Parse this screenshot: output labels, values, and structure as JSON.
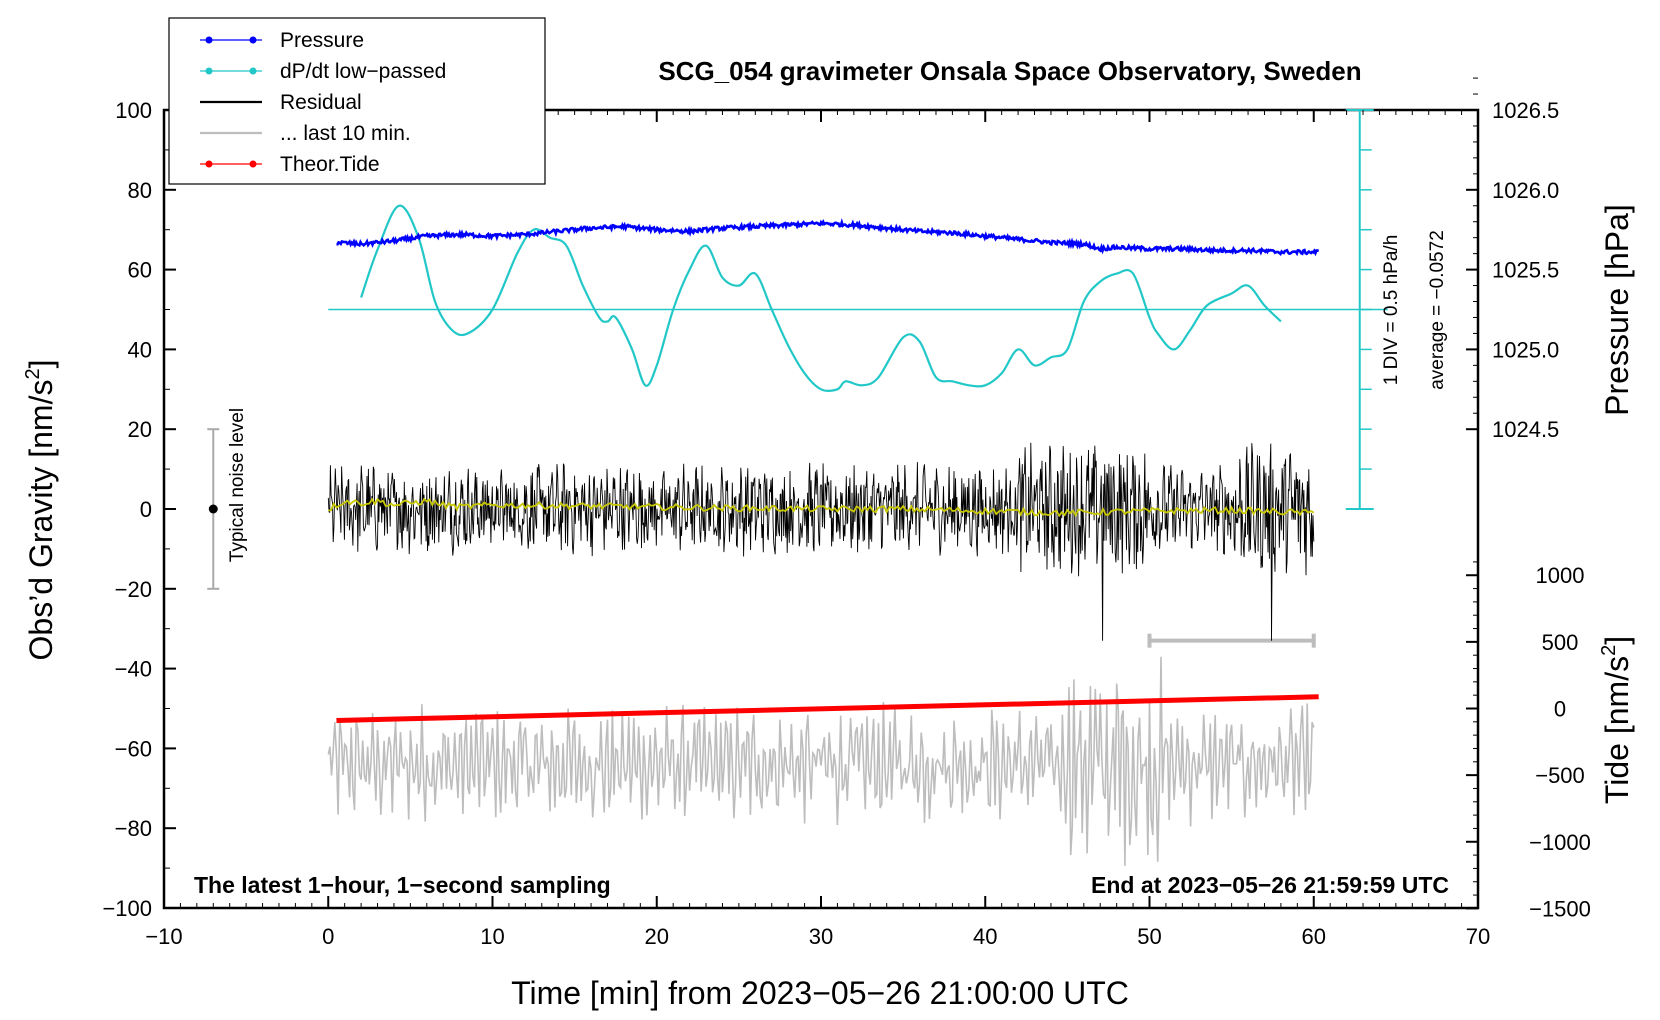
{
  "chart_data": {
    "type": "line",
    "title": "SCG_054 gravimeter Onsala Space Observatory, Sweden",
    "xlabel": "Time [min] from 2023−05−26 21:00:00 UTC",
    "ylabel_left": "Obs’d Gravity [nm/s",
    "ylabel_left_sup": "2",
    "ylabel_left_end": "]",
    "ylabel_right_pressure": "Pressure [hPa]",
    "ylabel_right_tide": "Tide [nm/s",
    "ylabel_right_tide_sup": "2",
    "ylabel_right_tide_end": "]",
    "xlim": [
      -10,
      70
    ],
    "ylim": [
      -100,
      100
    ],
    "x_ticks": [
      -10,
      0,
      10,
      20,
      30,
      40,
      50,
      60,
      70
    ],
    "x_tick_labels": [
      "−10",
      "0",
      "10",
      "20",
      "30",
      "40",
      "50",
      "60",
      "70"
    ],
    "y_ticks": [
      -100,
      -80,
      -60,
      -40,
      -20,
      0,
      20,
      40,
      60,
      80,
      100
    ],
    "y_tick_labels": [
      "−100",
      "−80",
      "−60",
      "−40",
      "−20",
      "0",
      "20",
      "40",
      "60",
      "80",
      "100"
    ],
    "pressure_axis": {
      "ticks": [
        1024.5,
        1025.0,
        1025.5,
        1026.0,
        1026.5
      ],
      "tick_labels": [
        "1024.5",
        "1025.0",
        "1025.5",
        "1026.0",
        "1026.5"
      ],
      "gravity_at_1024_5": 20,
      "units_per_hpa": 40
    },
    "tide_axis": {
      "ticks": [
        -1500,
        -1000,
        -500,
        0,
        500,
        1000
      ],
      "tick_labels": [
        "−1500",
        "−1000",
        "−500",
        "0",
        "500",
        "1000"
      ],
      "gravity_at_0": -50,
      "units_per_500": 16.7
    },
    "dpdt_scale": {
      "label_div": "1 DIV = 0.5 hPa/h",
      "label_avg": "average = −0.0572",
      "average": -0.0572,
      "baseline_gravity": 50
    },
    "legend": [
      {
        "name": "Pressure",
        "color": "#0000ff",
        "marker": true
      },
      {
        "name": "dP/dt low−passed",
        "color": "#22c7c7",
        "marker": true
      },
      {
        "name": "Residual",
        "color": "#000000",
        "marker": false
      },
      {
        "name": "... last 10 min.",
        "color": "#bdbdbd",
        "marker": false
      },
      {
        "name": "Theor.Tide",
        "color": "#ff0000",
        "marker": true
      }
    ],
    "series": [
      {
        "name": "Pressure",
        "color": "#0000ff",
        "unit": "hPa",
        "x": [
          0.5,
          2,
          4,
          6,
          8,
          10,
          12,
          14,
          16,
          18,
          20,
          22,
          24,
          26,
          28,
          30,
          32,
          34,
          36,
          38,
          40,
          42,
          44,
          46,
          47,
          48,
          50,
          52,
          54,
          56,
          58,
          60.3
        ],
        "values": [
          1025.67,
          1025.66,
          1025.68,
          1025.71,
          1025.72,
          1025.71,
          1025.72,
          1025.74,
          1025.76,
          1025.77,
          1025.75,
          1025.74,
          1025.76,
          1025.77,
          1025.78,
          1025.79,
          1025.78,
          1025.76,
          1025.74,
          1025.73,
          1025.71,
          1025.69,
          1025.67,
          1025.66,
          1025.63,
          1025.64,
          1025.63,
          1025.63,
          1025.62,
          1025.62,
          1025.61,
          1025.61
        ]
      },
      {
        "name": "dP/dt low−passed",
        "color": "#22c7c7",
        "unit": "gravity-plot units",
        "x": [
          2,
          3,
          4.3,
          5.5,
          6.5,
          7.5,
          8.5,
          10,
          11.5,
          12.5,
          13.5,
          14.5,
          15.5,
          16.5,
          17,
          17.5,
          18.5,
          19.3,
          20,
          21,
          22,
          23,
          24,
          25,
          26,
          27,
          28,
          29,
          30,
          31,
          31.5,
          32.5,
          33.5,
          35,
          36,
          37,
          38,
          39,
          40,
          41,
          42,
          43,
          44,
          45,
          46,
          47,
          48,
          49,
          50,
          50.5,
          51.5,
          52.5,
          53.5,
          55,
          56,
          57,
          58
        ],
        "values": [
          53,
          65,
          76,
          68,
          52,
          45,
          44,
          50,
          64,
          70,
          68,
          66,
          56,
          48,
          47,
          48,
          40,
          31,
          36,
          50,
          60,
          66,
          58,
          56,
          59,
          50,
          41,
          34,
          30,
          30,
          32,
          31,
          33,
          43,
          42,
          33,
          32,
          31,
          31,
          34,
          40,
          36,
          38,
          40,
          52,
          57,
          59,
          59,
          48,
          44,
          40,
          45,
          51,
          54,
          56,
          51,
          47
        ]
      },
      {
        "name": "Residual",
        "color": "#000000",
        "x_range": [
          0,
          60
        ],
        "values_range": [
          -34,
          27
        ]
      },
      {
        "name": "Residual smoothed",
        "color": "#c8c800",
        "x": [
          0,
          1,
          2,
          3,
          4,
          5,
          6,
          7,
          8,
          10,
          15,
          20,
          25,
          30,
          35,
          40,
          45,
          50,
          55,
          60
        ],
        "values": [
          0,
          2,
          1.5,
          2,
          1,
          1.5,
          2,
          1,
          0.5,
          1,
          0.8,
          0.5,
          0.2,
          0,
          0,
          -0.5,
          -1,
          -0.5,
          -0.3,
          -1
        ]
      },
      {
        "name": "... last 10 min.",
        "color": "#bdbdbd",
        "x_range": [
          0,
          60
        ],
        "values_range": [
          -92,
          -35
        ]
      },
      {
        "name": "Theor.Tide",
        "color": "#ff0000",
        "unit": "nm/s²",
        "x": [
          0.5,
          60.3
        ],
        "values": [
          -90,
          88
        ]
      }
    ],
    "last10_marker": {
      "x": [
        50,
        60
      ],
      "y": -33
    },
    "noise_bar": {
      "label": "Typical noise level",
      "x": -7,
      "y_range": [
        -20,
        20
      ],
      "center": 0
    },
    "pressure_scale_bar": {
      "x": 62.8,
      "y_range": [
        0,
        100
      ],
      "baseline": 50
    },
    "footer_left": "The latest 1−hour, 1−second sampling",
    "footer_right": "End at 2023−05−26 21:59:59 UTC"
  }
}
